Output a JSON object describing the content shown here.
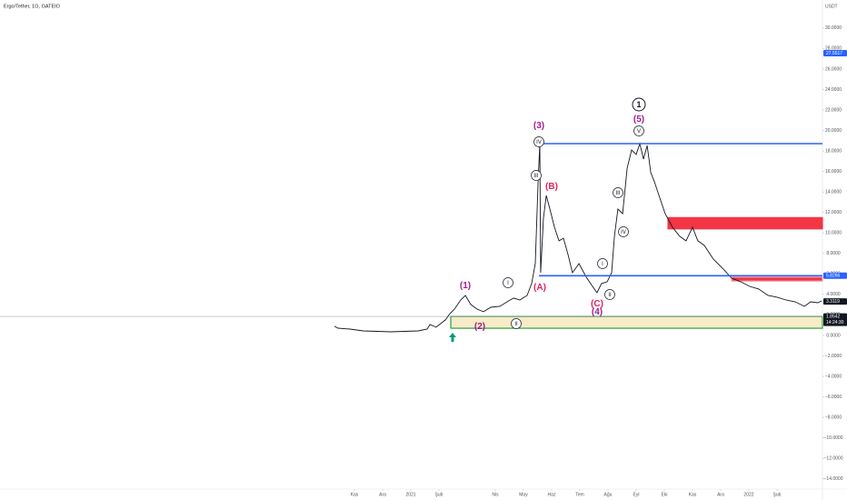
{
  "chart_data": {
    "type": "line",
    "title": "Ergo/Tether, 1G, GATEIO",
    "unit": "USDT",
    "color": "#131722",
    "x": [
      -0.71,
      -0.58,
      -0.16,
      0.32,
      1.29,
      2.26,
      2.58,
      2.68,
      2.9,
      3.23,
      3.39,
      3.55,
      3.77,
      3.94,
      4.13,
      4.35,
      4.58,
      4.84,
      5.16,
      5.42,
      5.65,
      5.87,
      6.13,
      6.29,
      6.42,
      6.52,
      6.58,
      6.61,
      6.71,
      6.81,
      6.94,
      7.1,
      7.26,
      7.42,
      7.58,
      7.74,
      7.97,
      8.23,
      8.45,
      8.61,
      8.77,
      8.97,
      9.13,
      9.23,
      9.35,
      9.52,
      9.68,
      9.84,
      10.0,
      10.13,
      10.26,
      10.39,
      10.52,
      10.65,
      10.81,
      11.03,
      11.29,
      11.55,
      11.77,
      12.0,
      12.19,
      12.42,
      12.74,
      13.06,
      13.39,
      13.71,
      14.03,
      14.35,
      14.68,
      15.0,
      15.32,
      15.65,
      15.97,
      16.19,
      16.45,
      16.58
    ],
    "values": [
      0.89,
      0.71,
      0.62,
      0.44,
      0.35,
      0.44,
      0.62,
      1.06,
      0.8,
      1.51,
      2.13,
      2.57,
      3.46,
      3.9,
      3.02,
      2.57,
      2.31,
      2.75,
      2.84,
      3.28,
      3.64,
      3.46,
      3.9,
      5.06,
      7.01,
      15.0,
      18.72,
      6.12,
      11.45,
      13.66,
      12.33,
      10.56,
      9.23,
      9.49,
      7.9,
      6.12,
      7.01,
      5.68,
      4.79,
      4.17,
      5.06,
      5.24,
      6.12,
      9.67,
      12.33,
      11.89,
      16.33,
      18.1,
      17.66,
      18.72,
      17.21,
      18.54,
      15.88,
      15.0,
      13.66,
      11.89,
      10.56,
      9.67,
      9.23,
      10.56,
      9.23,
      8.78,
      7.45,
      6.57,
      5.59,
      5.24,
      4.79,
      4.53,
      3.9,
      3.73,
      3.46,
      3.28,
      2.84,
      3.28,
      3.19,
      3.37
    ],
    "xlim": [
      -12.581,
      16.613
    ],
    "xticks": [
      {
        "value": 0,
        "label": "Kas"
      },
      {
        "value": 1,
        "label": "Ara"
      },
      {
        "value": 2,
        "label": "2021"
      },
      {
        "value": 3,
        "label": "Şub"
      },
      {
        "value": 5,
        "label": "Nis"
      },
      {
        "value": 6,
        "label": "May"
      },
      {
        "value": 7,
        "label": "Haz"
      },
      {
        "value": 8,
        "label": "Tem"
      },
      {
        "value": 9,
        "label": "Ağu"
      },
      {
        "value": 10,
        "label": "Eyl"
      },
      {
        "value": 11,
        "label": "Eki"
      },
      {
        "value": 12,
        "label": "Kas"
      },
      {
        "value": 13,
        "label": "Ara"
      },
      {
        "value": 14,
        "label": "2022"
      },
      {
        "value": 15,
        "label": "Şub"
      }
    ],
    "ylim": [
      -15,
      32.74
    ],
    "yticks": [
      {
        "value": 30,
        "label": "30.0000"
      },
      {
        "value": 28,
        "label": "28.0000"
      },
      {
        "value": 26,
        "label": "26.0000"
      },
      {
        "value": 24,
        "label": "24.0000"
      },
      {
        "value": 22,
        "label": "22.0000"
      },
      {
        "value": 20,
        "label": "20.0000"
      },
      {
        "value": 18,
        "label": "18.0000"
      },
      {
        "value": 16,
        "label": "16.0000"
      },
      {
        "value": 14,
        "label": "14.0000"
      },
      {
        "value": 12,
        "label": "12.0000"
      },
      {
        "value": 10,
        "label": "10.0000"
      },
      {
        "value": 8,
        "label": "8.0000"
      },
      {
        "value": 6,
        "label": "6.0000"
      },
      {
        "value": 4,
        "label": "4.0000"
      },
      {
        "value": 2,
        "label": "2.0000"
      },
      {
        "value": 0,
        "label": "0.0000"
      },
      {
        "value": -2,
        "label": "−2.0000"
      },
      {
        "value": -4,
        "label": "−4.0000"
      },
      {
        "value": -6,
        "label": "−6.0000"
      },
      {
        "value": -8,
        "label": "−8.0000"
      },
      {
        "value": -10,
        "label": "−10.0000"
      },
      {
        "value": -12,
        "label": "−12.0000"
      },
      {
        "value": -14,
        "label": "−14.0000"
      }
    ],
    "hlines": [
      {
        "value": 18.72,
        "start": 6.39,
        "color": "#2962ff"
      },
      {
        "value": 5.8266,
        "start": 6.55,
        "color": "#2962ff"
      }
    ],
    "zones": [
      {
        "from": 0.7,
        "to": 1.85,
        "start": 3.42,
        "color": "#f7ebc8",
        "border": "#2e9e3e"
      },
      {
        "from": 10.4,
        "to": 11.5,
        "start": 11.13,
        "color": "#f23645",
        "border": "#f23645"
      },
      {
        "from": 5.3,
        "to": 5.7,
        "start": 13.39,
        "color": "#f23645",
        "border": "#f7a6ae"
      }
    ],
    "price_tags": [
      {
        "value": 27.5517,
        "color": "#2962ff"
      },
      {
        "value": 5.8266,
        "color": "#2962ff"
      },
      {
        "value": 3.3119,
        "color": "#131722"
      },
      {
        "value": 1.8542,
        "color": "#131722",
        "countdown": "14:24:30"
      }
    ],
    "annotations": [
      "(1)",
      "(2)",
      "(3)",
      "(A)",
      "(B)",
      "(C)",
      "(4)",
      "(5)",
      "1",
      "I",
      "II",
      "III",
      "IV",
      "V",
      "I",
      "II",
      "III",
      "IV"
    ]
  }
}
